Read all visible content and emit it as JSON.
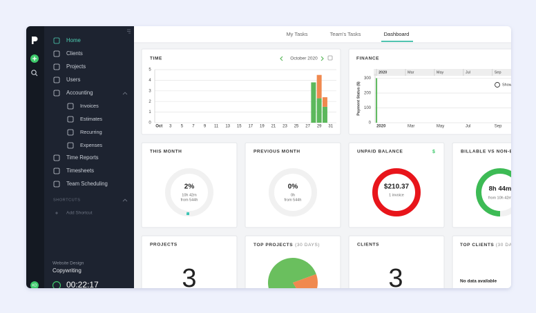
{
  "ui": {
    "tabs": [
      "My Tasks",
      "Team's Tasks",
      "Dashboard"
    ],
    "avatar": "KD",
    "sidebar": {
      "main": [
        "Home",
        "Clients",
        "Projects",
        "Users",
        "Accounting"
      ],
      "accounting_menu": [
        "Invoices",
        "Estimates",
        "Recurring",
        "Expenses"
      ],
      "more": [
        "Time Reports",
        "Timesheets",
        "Team Scheduling"
      ],
      "shortcuts_title": "SHORTCUTS",
      "add_shortcut": "Add Shortcut",
      "recent_project": "Website Design",
      "recent_task": "Copywriting",
      "timer": "00:22:17"
    },
    "cards": {
      "projects": {
        "title": "PROJECTS",
        "count": "3"
      },
      "clients": {
        "title": "CLIENTS",
        "count": "3"
      },
      "top_clients": {
        "title": "TOP CLIENTS",
        "subtitle": "(30 DAYS)",
        "empty": "No data available"
      },
      "unpaid_icon": "$"
    }
  },
  "chart_data": [
    {
      "type": "bar",
      "title": "TIME",
      "subtitle": "October 2020",
      "stacked": true,
      "x": [
        28,
        29,
        30
      ],
      "series": [
        {
          "color": "#5cb85c",
          "values": [
            3.8,
            2.3,
            1.5
          ]
        },
        {
          "color": "#f0894f",
          "values": [
            0,
            2.2,
            0.9
          ]
        }
      ],
      "xlim": [
        0,
        32
      ],
      "xticks": [
        {
          "value": 1,
          "label": "Oct"
        },
        3,
        5,
        7,
        9,
        11,
        13,
        15,
        17,
        19,
        21,
        23,
        25,
        27,
        29,
        31
      ],
      "ylim": [
        0,
        5
      ],
      "yticks": [
        0,
        1,
        2,
        3,
        4,
        5
      ],
      "grid": true
    },
    {
      "type": "bar",
      "title": "FINANCE",
      "ylabel": "Payment Status ($)",
      "zoom_label": "Show",
      "x": [
        0
      ],
      "series": [
        {
          "color": "#5cb85c",
          "values": [
            300
          ]
        }
      ],
      "xlim": [
        -0.1,
        9.3
      ],
      "xticks": [
        {
          "value": 0,
          "label": "2020"
        },
        {
          "value": 2,
          "label": "Mar"
        },
        {
          "value": 4,
          "label": "May"
        },
        {
          "value": 6,
          "label": "Jul"
        },
        {
          "value": 8,
          "label": "Sep"
        }
      ],
      "ylim": [
        0,
        330
      ],
      "yticks": [
        0,
        100,
        200,
        300
      ],
      "grid": true
    },
    {
      "type": "donut",
      "title": "THIS MONTH",
      "values": [
        2
      ],
      "value_labels": [
        "2%"
      ],
      "subtitle": "10h 42m",
      "note": "from 544h",
      "ylim": [
        0,
        100
      ],
      "color": "#3cc5b5",
      "track": "#f1f1f1"
    },
    {
      "type": "donut",
      "title": "PREVIOUS MONTH",
      "values": [
        0
      ],
      "value_labels": [
        "0%"
      ],
      "subtitle": "0h",
      "note": "from 544h",
      "ylim": [
        0,
        100
      ],
      "color": "#3cc5b5",
      "track": "#f1f1f1"
    },
    {
      "type": "donut",
      "title": "UNPAID BALANCE",
      "values": [
        210.37
      ],
      "value_labels": [
        "$210.37"
      ],
      "subtitle": "1 invoice",
      "ylim": [
        0,
        210.37
      ],
      "color": "#e8151b",
      "track": "#f1f1f1"
    },
    {
      "type": "donut",
      "title": "BILLABLE VS NON-BILLABLE",
      "values": [
        82
      ],
      "subtitle": "8h 44m",
      "note": "from 10h 42m",
      "ylim": [
        0,
        100
      ],
      "color": "#3dbb55",
      "track": "#f1f1f1"
    },
    {
      "type": "pie",
      "title": "TOP PROJECTS",
      "subtitle": "(30 DAYS)",
      "values": [
        78,
        22
      ],
      "colors": [
        "#6abf5e",
        "#f0894f"
      ]
    }
  ]
}
